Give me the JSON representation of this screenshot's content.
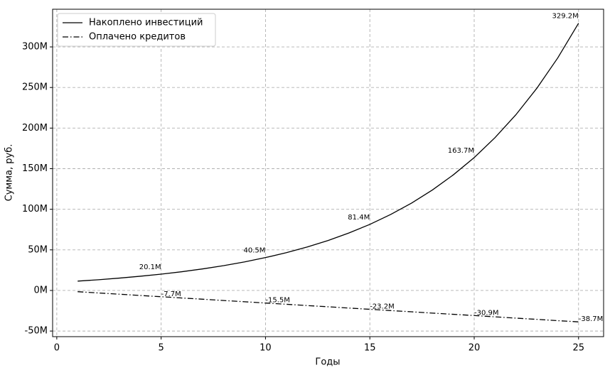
{
  "chart_data": {
    "type": "line",
    "x": [
      1,
      2,
      3,
      4,
      5,
      6,
      7,
      8,
      9,
      10,
      11,
      12,
      13,
      14,
      15,
      16,
      17,
      18,
      19,
      20,
      21,
      22,
      23,
      24,
      25
    ],
    "series": [
      {
        "name": "Накоплено инвестиций",
        "color": "#000000",
        "style": "solid",
        "values": [
          11.5,
          13.2,
          15.2,
          17.5,
          20.1,
          23.1,
          26.6,
          30.6,
          35.2,
          40.5,
          46.5,
          53.5,
          61.5,
          70.8,
          81.4,
          93.6,
          107.6,
          123.8,
          142.4,
          163.7,
          188.3,
          216.5,
          249.0,
          286.3,
          329.2
        ],
        "value_labels": [
          null,
          null,
          null,
          null,
          "20.1M",
          null,
          null,
          null,
          null,
          "40.5M",
          null,
          null,
          null,
          null,
          "81.4M",
          null,
          null,
          null,
          null,
          "163.7M",
          null,
          null,
          null,
          null,
          "329.2M"
        ]
      },
      {
        "name": "Оплачено кредитов",
        "color": "#000000",
        "style": "dashdot",
        "values": [
          -1.5,
          -3.1,
          -4.6,
          -6.2,
          -7.7,
          -9.3,
          -10.8,
          -12.4,
          -13.9,
          -15.5,
          -17.0,
          -18.6,
          -20.1,
          -21.7,
          -23.2,
          -24.8,
          -26.3,
          -27.9,
          -29.4,
          -30.9,
          -32.5,
          -34.1,
          -35.6,
          -37.2,
          -38.7
        ],
        "value_labels": [
          null,
          null,
          null,
          null,
          "-7.7M",
          null,
          null,
          null,
          null,
          "-15.5M",
          null,
          null,
          null,
          null,
          "-23.2M",
          null,
          null,
          null,
          null,
          "-30.9M",
          null,
          null,
          null,
          null,
          "-38.7M"
        ]
      }
    ],
    "x_label": "Годы",
    "y_label": "Сумма, руб.",
    "xlim": [
      -0.2,
      26.2
    ],
    "xticks": [
      0,
      5,
      10,
      15,
      20,
      25
    ],
    "ylim": [
      -56.9,
      346.4
    ],
    "yticks": [
      {
        "value": -50,
        "label": "-50M"
      },
      {
        "value": 0,
        "label": "0M"
      },
      {
        "value": 50,
        "label": "50M"
      },
      {
        "value": 100,
        "label": "100M"
      },
      {
        "value": 150,
        "label": "150M"
      },
      {
        "value": 200,
        "label": "200M"
      },
      {
        "value": 250,
        "label": "250M"
      },
      {
        "value": 300,
        "label": "300M"
      }
    ],
    "grid": true,
    "legend": "upper left"
  }
}
